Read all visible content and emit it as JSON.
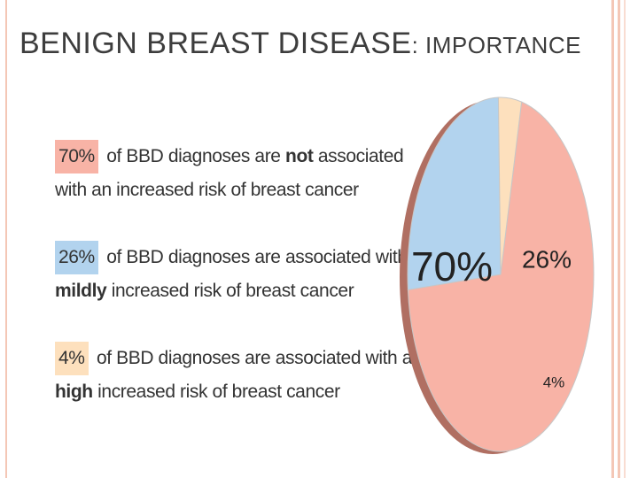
{
  "title": {
    "main": "BENIGN BREAST DISEASE",
    "sub": ": IMPORTANCE"
  },
  "legend": [
    {
      "pct": "70%",
      "line1_pre": " of BBD diagnoses are ",
      "line1_bold": "not",
      "line1_post": " associated",
      "line2_bold": "",
      "line2": "with an increased risk of breast cancer",
      "color": "#f8b3a6"
    },
    {
      "pct": "26%",
      "line1_pre": " of BBD diagnoses are associated with a",
      "line1_bold": "",
      "line1_post": "",
      "line2_bold": "mildly",
      "line2": " increased risk of breast cancer",
      "color": "#b2d3ee"
    },
    {
      "pct": "4%",
      "line1_pre": " of BBD diagnoses are associated with a",
      "line1_bold": "",
      "line1_post": "",
      "line2_bold": "high",
      "line2": " increased risk of breast cancer",
      "color": "#fde0bd"
    }
  ],
  "chart_data": {
    "type": "pie",
    "categories": [
      "70%",
      "26%",
      "4%"
    ],
    "values": [
      70,
      26,
      4
    ],
    "labels": [
      "70%",
      "26%",
      "4%"
    ],
    "colors": [
      "#f8b3a6",
      "#b2d3ee",
      "#fde0bd"
    ],
    "side_color": "#b06f62"
  }
}
